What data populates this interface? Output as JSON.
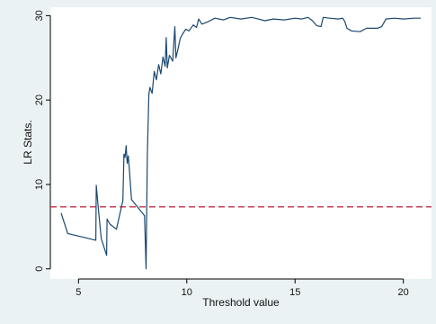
{
  "chart_data": {
    "type": "line",
    "xlabel": "Threshold value",
    "ylabel": "LR Stats.",
    "xlim": [
      3.7,
      21.3
    ],
    "ylim": [
      -1.2,
      31
    ],
    "x_ticks": [
      5,
      10,
      15,
      20
    ],
    "x_tick_labels": [
      "5",
      "10",
      "15",
      "20"
    ],
    "y_ticks": [
      0,
      10,
      20,
      30
    ],
    "y_tick_labels": [
      "0",
      "10",
      "20",
      "30"
    ],
    "grid": false,
    "legend": "none",
    "colors": {
      "page_bg": "#eaf2f3",
      "plot_bg": "#ffffff",
      "series": "#1a476f",
      "reference": "#c0304a"
    },
    "series": [
      {
        "values": [
          [
            4.2,
            6.6
          ],
          [
            4.5,
            4.2
          ],
          [
            5.8,
            3.4
          ],
          [
            5.82,
            9.9
          ],
          [
            5.9,
            7.6
          ],
          [
            6.05,
            3.6
          ],
          [
            6.3,
            1.6
          ],
          [
            6.32,
            5.9
          ],
          [
            6.45,
            5.3
          ],
          [
            6.75,
            4.7
          ],
          [
            7.05,
            8.1
          ],
          [
            7.1,
            13.6
          ],
          [
            7.15,
            13.2
          ],
          [
            7.2,
            14.6
          ],
          [
            7.25,
            12.5
          ],
          [
            7.3,
            13.4
          ],
          [
            7.35,
            11.8
          ],
          [
            7.45,
            8.2
          ],
          [
            8.05,
            6.3
          ],
          [
            8.12,
            0.0
          ],
          [
            8.18,
            13.5
          ],
          [
            8.25,
            20.7
          ],
          [
            8.3,
            21.5
          ],
          [
            8.4,
            20.8
          ],
          [
            8.5,
            23.4
          ],
          [
            8.6,
            22.4
          ],
          [
            8.7,
            24.2
          ],
          [
            8.8,
            23.1
          ],
          [
            8.9,
            25.1
          ],
          [
            9.0,
            24.0
          ],
          [
            9.05,
            27.4
          ],
          [
            9.1,
            23.8
          ],
          [
            9.2,
            25.3
          ],
          [
            9.35,
            24.6
          ],
          [
            9.45,
            28.7
          ],
          [
            9.5,
            25.0
          ],
          [
            9.6,
            26.1
          ],
          [
            9.7,
            27.3
          ],
          [
            9.8,
            27.8
          ],
          [
            9.95,
            28.4
          ],
          [
            10.1,
            28.2
          ],
          [
            10.3,
            28.9
          ],
          [
            10.45,
            28.6
          ],
          [
            10.55,
            29.6
          ],
          [
            10.7,
            29.0
          ],
          [
            11.0,
            29.3
          ],
          [
            11.3,
            29.7
          ],
          [
            11.7,
            29.5
          ],
          [
            12.0,
            29.8
          ],
          [
            12.5,
            29.6
          ],
          [
            13.0,
            29.8
          ],
          [
            13.3,
            29.6
          ],
          [
            13.6,
            29.4
          ],
          [
            14.0,
            29.6
          ],
          [
            14.5,
            29.5
          ],
          [
            15.0,
            29.7
          ],
          [
            15.3,
            29.6
          ],
          [
            15.6,
            29.8
          ],
          [
            15.8,
            29.4
          ],
          [
            16.0,
            28.8
          ],
          [
            16.2,
            28.7
          ],
          [
            16.3,
            29.8
          ],
          [
            16.6,
            29.7
          ],
          [
            17.0,
            29.6
          ],
          [
            17.2,
            29.7
          ],
          [
            17.3,
            29.3
          ],
          [
            17.4,
            28.5
          ],
          [
            17.6,
            28.2
          ],
          [
            18.0,
            28.1
          ],
          [
            18.3,
            28.5
          ],
          [
            18.8,
            28.5
          ],
          [
            19.0,
            28.7
          ],
          [
            19.2,
            29.6
          ],
          [
            19.6,
            29.7
          ],
          [
            20.0,
            29.6
          ],
          [
            20.5,
            29.7
          ],
          [
            20.8,
            29.7
          ]
        ]
      }
    ],
    "reference_lines": [
      {
        "axis": "y",
        "value": 7.35,
        "style": "dashed"
      }
    ]
  }
}
